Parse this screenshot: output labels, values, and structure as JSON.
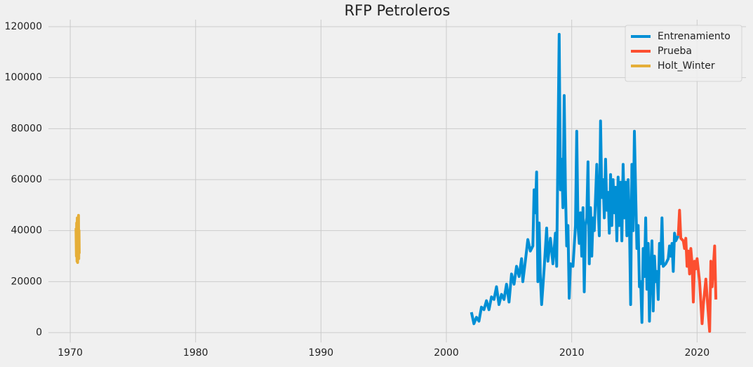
{
  "chart_data": {
    "type": "line",
    "title": "RFP Petroleros",
    "xlim": [
      1968.26,
      2023.9
    ],
    "ylim": [
      -3850,
      122750
    ],
    "xticks": [
      1970,
      1980,
      1990,
      2000,
      2010,
      2020
    ],
    "yticks": [
      0,
      20000,
      40000,
      60000,
      80000,
      100000,
      120000
    ],
    "grid": true,
    "legend": "upper right",
    "series": [
      {
        "name": "Entrenamiento",
        "color": "#008fd5",
        "x": [
          2002.0,
          2002.2,
          2002.4,
          2002.6,
          2002.8,
          2003.0,
          2003.2,
          2003.4,
          2003.6,
          2003.8,
          2004.0,
          2004.2,
          2004.4,
          2004.6,
          2004.8,
          2005.0,
          2005.2,
          2005.4,
          2005.6,
          2005.8,
          2006.0,
          2006.1,
          2006.3,
          2006.5,
          2006.7,
          2006.9,
          2007.0,
          2007.1,
          2007.2,
          2007.3,
          2007.4,
          2007.5,
          2007.6,
          2007.8,
          2008.0,
          2008.1,
          2008.3,
          2008.5,
          2008.7,
          2008.8,
          2009.0,
          2009.1,
          2009.2,
          2009.3,
          2009.4,
          2009.5,
          2009.6,
          2009.7,
          2009.8,
          2009.9,
          2010.1,
          2010.3,
          2010.4,
          2010.5,
          2010.6,
          2010.7,
          2010.8,
          2010.9,
          2011.0,
          2011.1,
          2011.2,
          2011.3,
          2011.4,
          2011.5,
          2011.6,
          2011.7,
          2011.8,
          2012.0,
          2012.1,
          2012.2,
          2012.3,
          2012.4,
          2012.5,
          2012.6,
          2012.7,
          2012.8,
          2012.9,
          2013.0,
          2013.1,
          2013.2,
          2013.3,
          2013.4,
          2013.5,
          2013.6,
          2013.7,
          2013.8,
          2013.9,
          2014.0,
          2014.1,
          2014.2,
          2014.3,
          2014.4,
          2014.5,
          2014.6,
          2014.7,
          2014.8,
          2014.9,
          2015.0,
          2015.1,
          2015.2,
          2015.3,
          2015.4,
          2015.5,
          2015.6,
          2015.7,
          2015.8,
          2015.9,
          2016.0,
          2016.1,
          2016.2,
          2016.3,
          2016.4,
          2016.5,
          2016.6,
          2016.7,
          2016.8,
          2016.9,
          2017.0,
          2017.1,
          2017.2,
          2017.3,
          2017.5,
          2017.7,
          2017.8,
          2017.9,
          2018.0,
          2018.1,
          2018.2,
          2018.3,
          2018.5
        ],
        "values": [
          8000,
          3500,
          6000,
          4500,
          10000,
          9000,
          12500,
          9000,
          14000,
          13000,
          18000,
          11000,
          15000,
          13000,
          19000,
          12000,
          23000,
          19000,
          26000,
          22000,
          29000,
          20000,
          28000,
          36500,
          32000,
          34000,
          56000,
          47000,
          63000,
          20000,
          43000,
          22000,
          11000,
          25000,
          41000,
          28000,
          37000,
          27000,
          39000,
          26000,
          117000,
          56000,
          68000,
          49000,
          93000,
          56000,
          34000,
          42000,
          13500,
          27000,
          26000,
          42000,
          79000,
          42000,
          35000,
          47000,
          30000,
          49000,
          16000,
          42000,
          45000,
          67000,
          27000,
          49000,
          30000,
          45000,
          40000,
          66000,
          50000,
          38000,
          83000,
          53000,
          60000,
          45000,
          68000,
          48000,
          55000,
          39000,
          62000,
          42000,
          60000,
          47000,
          57000,
          36000,
          61000,
          42000,
          59000,
          36000,
          66000,
          45000,
          59000,
          38000,
          60000,
          44000,
          11000,
          66000,
          40000,
          79000,
          55000,
          33000,
          42000,
          18000,
          20000,
          4000,
          33000,
          22000,
          45000,
          17000,
          35000,
          4500,
          25000,
          36000,
          8500,
          30000,
          20000,
          24000,
          13000,
          35000,
          27000,
          45000,
          26000,
          27000,
          29000,
          34000,
          30000,
          35000,
          24000,
          39000,
          36000,
          38000
        ]
      },
      {
        "name": "Prueba",
        "color": "#fc4f30",
        "x": [
          2018.5,
          2018.6,
          2018.7,
          2018.9,
          2019.0,
          2019.1,
          2019.2,
          2019.3,
          2019.4,
          2019.5,
          2019.6,
          2019.7,
          2019.8,
          2019.9,
          2020.0,
          2020.2,
          2020.3,
          2020.4,
          2020.5,
          2020.7,
          2020.8,
          2021.0,
          2021.1,
          2021.2,
          2021.3,
          2021.4,
          2021.5
        ],
        "values": [
          38000,
          48000,
          37000,
          36000,
          33000,
          37000,
          26000,
          32000,
          23000,
          33000,
          27000,
          12000,
          28000,
          25000,
          29000,
          20000,
          12000,
          3500,
          11000,
          21000,
          14000,
          500,
          28000,
          18000,
          26000,
          34000,
          13000
        ]
      },
      {
        "name": "Holt_Winter",
        "color": "#e5ae38",
        "x": [
          1970.46,
          1970.49,
          1970.51,
          1970.54,
          1970.56,
          1970.59,
          1970.61,
          1970.63,
          1970.66,
          1970.68,
          1970.7,
          1970.72
        ],
        "values": [
          41000,
          30000,
          43000,
          28000,
          45000,
          27500,
          44000,
          30000,
          46000,
          29000,
          40000,
          31000
        ]
      }
    ]
  }
}
